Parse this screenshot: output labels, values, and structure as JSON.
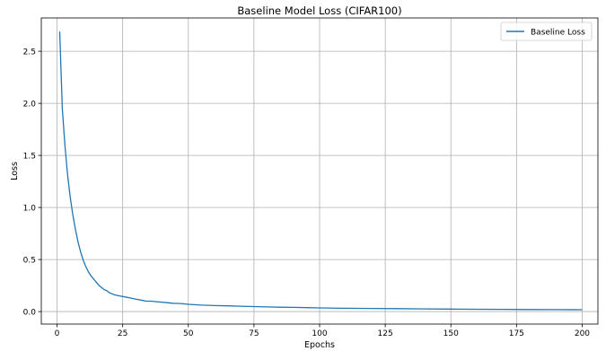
{
  "chart_data": {
    "type": "line",
    "title": "Baseline Model Loss (CIFAR100)",
    "xlabel": "Epochs",
    "ylabel": "Loss",
    "xlim": [
      -6,
      206
    ],
    "ylim": [
      -0.12,
      2.82
    ],
    "x_ticks": [
      0,
      25,
      50,
      75,
      100,
      125,
      150,
      175,
      200
    ],
    "y_ticks": [
      0.0,
      0.5,
      1.0,
      1.5,
      2.0,
      2.5
    ],
    "y_tick_format": 1,
    "grid": true,
    "legend_position": "top-right",
    "series": [
      {
        "name": "Baseline Loss",
        "color": "#1f77b4",
        "x": [
          1,
          2,
          3,
          4,
          5,
          6,
          7,
          8,
          9,
          10,
          11,
          12,
          13,
          14,
          15,
          16,
          17,
          18,
          19,
          20,
          22,
          24,
          26,
          28,
          30,
          32,
          34,
          36,
          38,
          40,
          42,
          44,
          46,
          48,
          50,
          55,
          60,
          65,
          70,
          75,
          80,
          85,
          90,
          95,
          100,
          110,
          120,
          130,
          140,
          150,
          160,
          170,
          180,
          190,
          200
        ],
        "y": [
          2.69,
          1.95,
          1.6,
          1.32,
          1.1,
          0.93,
          0.79,
          0.67,
          0.57,
          0.49,
          0.43,
          0.38,
          0.34,
          0.31,
          0.28,
          0.25,
          0.23,
          0.21,
          0.2,
          0.18,
          0.16,
          0.15,
          0.14,
          0.13,
          0.12,
          0.11,
          0.1,
          0.1,
          0.095,
          0.09,
          0.085,
          0.08,
          0.078,
          0.075,
          0.07,
          0.062,
          0.058,
          0.055,
          0.052,
          0.048,
          0.045,
          0.042,
          0.04,
          0.038,
          0.035,
          0.032,
          0.03,
          0.028,
          0.026,
          0.024,
          0.022,
          0.021,
          0.02,
          0.019,
          0.018
        ]
      }
    ]
  }
}
